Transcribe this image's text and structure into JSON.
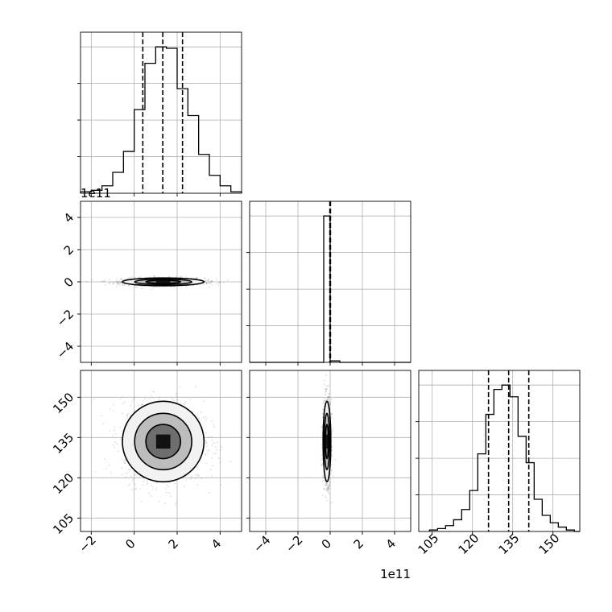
{
  "chart_data": {
    "type": "corner",
    "title": "",
    "parameters": [
      "",
      "",
      ""
    ],
    "scale_offset_labels": {
      "y_row1": "1e11",
      "x_col1": "1e11"
    },
    "quantile_lines": [
      "16%",
      "50%",
      "84%"
    ],
    "grid": true,
    "panels": [
      {
        "id": "hist-param0",
        "type": "histogram",
        "xlim": [
          -2.5,
          5.0
        ],
        "bin_edges": [
          -2.5,
          -2.0,
          -1.5,
          -1.0,
          -0.5,
          0.0,
          0.5,
          1.0,
          1.5,
          2.0,
          2.5,
          3.0,
          3.5,
          4.0,
          4.5,
          5.0
        ],
        "counts": [
          1,
          2,
          5,
          14,
          28,
          56,
          87,
          98,
          97,
          70,
          52,
          26,
          12,
          5,
          1
        ],
        "quantiles": [
          0.4,
          1.33,
          2.25
        ]
      },
      {
        "id": "hist-param1",
        "type": "histogram",
        "xlim": [
          -5.0,
          5.0
        ],
        "bin_edges": [
          -5.0,
          -0.4,
          0.0,
          0.6,
          5.0
        ],
        "counts": [
          0,
          100,
          1,
          0
        ],
        "quantiles": [
          -0.02,
          0.0,
          0.02
        ]
      },
      {
        "id": "hist-param2",
        "type": "histogram",
        "xlim": [
          100,
          160
        ],
        "bin_edges": [
          104,
          107,
          110,
          113,
          116,
          119,
          122,
          125,
          128,
          131,
          134,
          137,
          140,
          143,
          146,
          149,
          152,
          155,
          158,
          160
        ],
        "counts": [
          1,
          2,
          4,
          8,
          15,
          28,
          53,
          80,
          97,
          100,
          92,
          65,
          47,
          22,
          11,
          6,
          3,
          1,
          0
        ],
        "quantiles": [
          126,
          133.5,
          141
        ]
      },
      {
        "id": "scatter-param0-param1",
        "type": "scatter",
        "xlim": [
          -2.5,
          5.0
        ],
        "ylim": [
          -5.0,
          5.0
        ],
        "x_ticks": [
          -2,
          0,
          2,
          4
        ],
        "y_ticks": [
          -4,
          -2,
          0,
          2,
          4
        ],
        "y_tick_labels": [
          "−4",
          "−2",
          "0",
          "2",
          "4"
        ],
        "center": [
          1.35,
          0.0
        ],
        "spread": [
          0.95,
          0.12
        ]
      },
      {
        "id": "scatter-param0-param2",
        "type": "scatter",
        "xlim": [
          -2.5,
          5.0
        ],
        "ylim": [
          100,
          160
        ],
        "x_ticks": [
          -2,
          0,
          2,
          4
        ],
        "x_tick_labels": [
          "−2",
          "0",
          "2",
          "4"
        ],
        "y_ticks": [
          105,
          120,
          135,
          150
        ],
        "y_tick_labels": [
          "105",
          "120",
          "135",
          "150"
        ],
        "center": [
          1.35,
          133.5
        ],
        "spread": [
          0.95,
          7.5
        ]
      },
      {
        "id": "scatter-param1-param2",
        "type": "scatter",
        "xlim": [
          -5.0,
          5.0
        ],
        "ylim": [
          100,
          160
        ],
        "x_ticks": [
          -4,
          -2,
          0,
          2,
          4
        ],
        "x_tick_labels": [
          "−4",
          "−2",
          "0",
          "2",
          "4"
        ],
        "y_ticks": [
          105,
          120,
          135,
          150
        ],
        "center": [
          -0.2,
          133.5
        ],
        "spread": [
          0.12,
          7.5
        ]
      },
      {
        "id": "axis-param2",
        "type": "axis",
        "x_ticks": [
          105,
          120,
          135,
          150
        ],
        "x_tick_labels": [
          "105",
          "120",
          "135",
          "150"
        ]
      }
    ]
  }
}
